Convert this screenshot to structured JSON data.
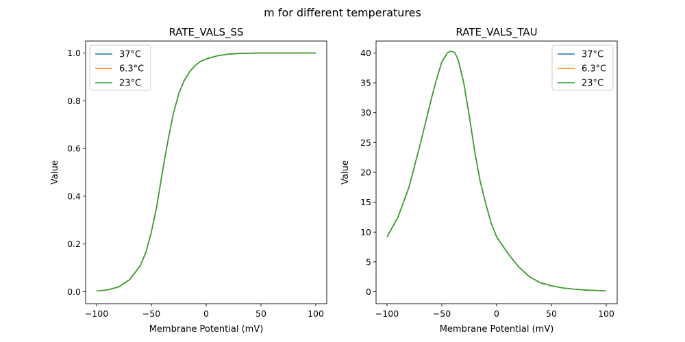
{
  "figure": {
    "suptitle": "m for different temperatures"
  },
  "colors": {
    "37°C": "#1f77b4",
    "6.3°C": "#ff7f0e",
    "23°C": "#2ca02c"
  },
  "chart_data": [
    {
      "type": "line",
      "title": "RATE_VALS_SS",
      "xlabel": "Membrane Potential (mV)",
      "ylabel": "Value",
      "xlim": [
        -110,
        110
      ],
      "ylim": [
        -0.05,
        1.05
      ],
      "xticks": [
        -100,
        -50,
        0,
        50,
        100
      ],
      "xtick_labels": [
        "−100",
        "−50",
        "0",
        "50",
        "100"
      ],
      "yticks": [
        0.0,
        0.2,
        0.4,
        0.6,
        0.8,
        1.0
      ],
      "ytick_labels": [
        "0.0",
        "0.2",
        "0.4",
        "0.6",
        "0.8",
        "1.0"
      ],
      "legend": "upper-left",
      "grid": false,
      "x": [
        -100,
        -90,
        -80,
        -70,
        -60,
        -55,
        -50,
        -45,
        -40,
        -35,
        -30,
        -25,
        -20,
        -15,
        -10,
        -5,
        0,
        10,
        20,
        30,
        40,
        50,
        60,
        70,
        80,
        90,
        100
      ],
      "series": [
        {
          "name": "37°C",
          "values": [
            0.003,
            0.008,
            0.02,
            0.05,
            0.11,
            0.165,
            0.25,
            0.36,
            0.5,
            0.63,
            0.745,
            0.83,
            0.885,
            0.922,
            0.948,
            0.965,
            0.975,
            0.988,
            0.995,
            0.998,
            0.999,
            1.0,
            1.0,
            1.0,
            1.0,
            1.0,
            1.0
          ]
        },
        {
          "name": "6.3°C",
          "values": [
            0.003,
            0.008,
            0.02,
            0.05,
            0.11,
            0.165,
            0.25,
            0.36,
            0.5,
            0.63,
            0.745,
            0.83,
            0.885,
            0.922,
            0.948,
            0.965,
            0.975,
            0.988,
            0.995,
            0.998,
            0.999,
            1.0,
            1.0,
            1.0,
            1.0,
            1.0,
            1.0
          ]
        },
        {
          "name": "23°C",
          "values": [
            0.003,
            0.008,
            0.02,
            0.05,
            0.11,
            0.165,
            0.25,
            0.36,
            0.5,
            0.63,
            0.745,
            0.83,
            0.885,
            0.922,
            0.948,
            0.965,
            0.975,
            0.988,
            0.995,
            0.998,
            0.999,
            1.0,
            1.0,
            1.0,
            1.0,
            1.0,
            1.0
          ]
        }
      ]
    },
    {
      "type": "line",
      "title": "RATE_VALS_TAU",
      "xlabel": "Membrane Potential (mV)",
      "ylabel": "Value",
      "xlim": [
        -110,
        110
      ],
      "ylim": [
        -2,
        42
      ],
      "xticks": [
        -100,
        -50,
        0,
        50,
        100
      ],
      "xtick_labels": [
        "−100",
        "−50",
        "0",
        "50",
        "100"
      ],
      "yticks": [
        0,
        5,
        10,
        15,
        20,
        25,
        30,
        35,
        40
      ],
      "ytick_labels": [
        "0",
        "5",
        "10",
        "15",
        "20",
        "25",
        "30",
        "35",
        "40"
      ],
      "legend": "upper-right",
      "grid": false,
      "x": [
        -100,
        -90,
        -80,
        -70,
        -60,
        -55,
        -50,
        -45,
        -42,
        -40,
        -38,
        -35,
        -30,
        -25,
        -20,
        -15,
        -10,
        -5,
        0,
        10,
        20,
        30,
        40,
        50,
        60,
        70,
        80,
        90,
        100
      ],
      "series": [
        {
          "name": "37°C",
          "values": [
            9.2,
            12.5,
            17.5,
            24.5,
            32.0,
            35.5,
            38.5,
            40.0,
            40.3,
            40.2,
            40.0,
            38.8,
            35.0,
            29.5,
            23.5,
            18.5,
            14.8,
            11.5,
            9.2,
            6.5,
            4.2,
            2.5,
            1.5,
            1.0,
            0.65,
            0.45,
            0.3,
            0.22,
            0.15
          ]
        },
        {
          "name": "6.3°C",
          "values": [
            9.2,
            12.5,
            17.5,
            24.5,
            32.0,
            35.5,
            38.5,
            40.0,
            40.3,
            40.2,
            40.0,
            38.8,
            35.0,
            29.5,
            23.5,
            18.5,
            14.8,
            11.5,
            9.2,
            6.5,
            4.2,
            2.5,
            1.5,
            1.0,
            0.65,
            0.45,
            0.3,
            0.22,
            0.15
          ]
        },
        {
          "name": "23°C",
          "values": [
            9.2,
            12.5,
            17.5,
            24.5,
            32.0,
            35.5,
            38.5,
            40.0,
            40.3,
            40.2,
            40.0,
            38.8,
            35.0,
            29.5,
            23.5,
            18.5,
            14.8,
            11.5,
            9.2,
            6.5,
            4.2,
            2.5,
            1.5,
            1.0,
            0.65,
            0.45,
            0.3,
            0.22,
            0.15
          ]
        }
      ]
    }
  ]
}
